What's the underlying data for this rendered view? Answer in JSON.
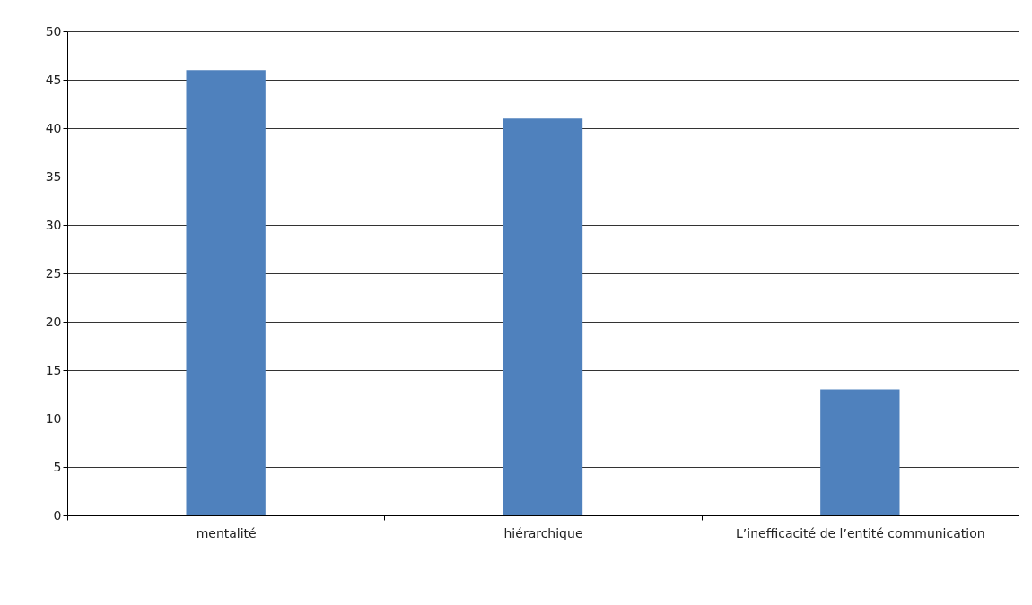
{
  "chart_data": {
    "type": "bar",
    "categories": [
      "mentalité",
      "hiérarchique",
      "L’inefficacité de l’entité communication"
    ],
    "values": [
      46,
      41,
      13
    ],
    "color": "#4f81bd",
    "ylim": [
      0,
      50
    ],
    "yticks": [
      0,
      5,
      10,
      15,
      20,
      25,
      30,
      35,
      40,
      45,
      50
    ],
    "grid": "y"
  }
}
